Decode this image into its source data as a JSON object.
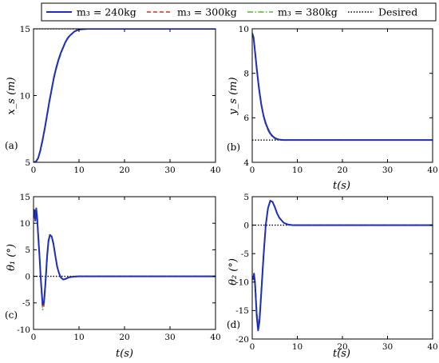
{
  "legend": {
    "placement": "top",
    "entries": [
      {
        "label": "m₃ = 240kg",
        "color": "#1f2fbf",
        "dash": "solid"
      },
      {
        "label": "m₃ = 300kg",
        "color": "#d2351e",
        "dash": "dashed"
      },
      {
        "label": "m₃ = 380kg",
        "color": "#56b82a",
        "dash": "dashdot"
      },
      {
        "label": "Desired",
        "color": "#000000",
        "dash": "dotted"
      }
    ]
  },
  "chart_data": [
    {
      "type": "line",
      "panel": "(a)",
      "ylabel": "x_s (m)",
      "xlabel": "",
      "xlim": [
        0,
        40
      ],
      "ylim": [
        5,
        15
      ],
      "xticks": [
        "0",
        "10",
        "20",
        "30",
        "40"
      ],
      "yticks": [
        "5",
        "10",
        "15"
      ],
      "grid": false,
      "series": [
        {
          "name": "m₃ = 240kg",
          "x": [
            0,
            0.5,
            1,
            1.5,
            2,
            2.5,
            3,
            3.5,
            4,
            4.5,
            5,
            5.5,
            6,
            6.5,
            7,
            7.5,
            8,
            9,
            10,
            12,
            15,
            20,
            30,
            40
          ],
          "y": [
            5,
            5.05,
            5.3,
            5.9,
            6.7,
            7.6,
            8.6,
            9.6,
            10.5,
            11.4,
            12.1,
            12.7,
            13.2,
            13.6,
            14.0,
            14.3,
            14.5,
            14.8,
            14.95,
            15,
            15,
            15,
            15,
            15
          ]
        },
        {
          "name": "m₃ = 300kg",
          "x": [
            0,
            0.5,
            1,
            1.5,
            2,
            2.5,
            3,
            3.5,
            4,
            4.5,
            5,
            5.5,
            6,
            6.5,
            7,
            7.5,
            8,
            9,
            10,
            12,
            15,
            20,
            30,
            40
          ],
          "y": [
            5,
            5.04,
            5.28,
            5.86,
            6.65,
            7.55,
            8.55,
            9.55,
            10.45,
            11.35,
            12.05,
            12.65,
            13.15,
            13.58,
            13.98,
            14.28,
            14.5,
            14.8,
            14.95,
            15,
            15,
            15,
            15,
            15
          ]
        },
        {
          "name": "m₃ = 380kg",
          "x": [
            0,
            0.5,
            1,
            1.5,
            2,
            2.5,
            3,
            3.5,
            4,
            4.5,
            5,
            5.5,
            6,
            6.5,
            7,
            7.5,
            8,
            9,
            10,
            12,
            15,
            20,
            30,
            40
          ],
          "y": [
            5,
            5.03,
            5.25,
            5.82,
            6.6,
            7.5,
            8.5,
            9.5,
            10.4,
            11.3,
            12.0,
            12.6,
            13.1,
            13.55,
            13.95,
            14.25,
            14.48,
            14.78,
            14.94,
            15,
            15,
            15,
            15,
            15
          ]
        },
        {
          "name": "Desired",
          "x": [
            0,
            40
          ],
          "y": [
            15,
            15
          ]
        }
      ]
    },
    {
      "type": "line",
      "panel": "(b)",
      "ylabel": "y_s (m)",
      "xlabel": "t(s)",
      "xlim": [
        0,
        40
      ],
      "ylim": [
        4,
        10
      ],
      "xticks": [
        "0",
        "10",
        "20",
        "30",
        "40"
      ],
      "yticks": [
        "4",
        "6",
        "8",
        "10"
      ],
      "grid": false,
      "series": [
        {
          "name": "m₃ = 240kg",
          "x": [
            0,
            0.3,
            0.6,
            1,
            1.5,
            2,
            2.5,
            3,
            3.5,
            4,
            4.5,
            5,
            5.5,
            6,
            7,
            8,
            10,
            15,
            20,
            30,
            40
          ],
          "y": [
            9.8,
            9.6,
            9.0,
            8.2,
            7.3,
            6.6,
            6.1,
            5.75,
            5.5,
            5.3,
            5.18,
            5.1,
            5.05,
            5.02,
            5.0,
            5.0,
            5.0,
            5.0,
            5.0,
            5.0,
            5.0
          ]
        },
        {
          "name": "m₃ = 300kg",
          "x": [
            0,
            0.3,
            0.6,
            1,
            1.5,
            2,
            2.5,
            3,
            3.5,
            4,
            4.5,
            5,
            5.5,
            6,
            7,
            8,
            10,
            15,
            20,
            30,
            40
          ],
          "y": [
            9.8,
            9.62,
            9.05,
            8.25,
            7.35,
            6.62,
            6.08,
            5.72,
            5.47,
            5.28,
            5.16,
            5.08,
            5.04,
            5.01,
            5.0,
            5.0,
            5.0,
            5.0,
            5.0,
            5.0,
            5.0
          ]
        },
        {
          "name": "m₃ = 380kg",
          "x": [
            0,
            0.3,
            0.6,
            1,
            1.5,
            2,
            2.5,
            3,
            3.5,
            4,
            4.5,
            5,
            5.5,
            6,
            7,
            8,
            10,
            15,
            20,
            30,
            40
          ],
          "y": [
            9.8,
            9.65,
            9.1,
            8.3,
            7.4,
            6.65,
            6.05,
            5.68,
            5.44,
            5.25,
            5.14,
            5.06,
            5.03,
            5.01,
            5.0,
            5.0,
            5.0,
            5.0,
            5.0,
            5.0,
            5.0
          ]
        },
        {
          "name": "Desired",
          "x": [
            0,
            40
          ],
          "y": [
            5,
            5
          ]
        }
      ]
    },
    {
      "type": "line",
      "panel": "(c)",
      "ylabel": "θ₁ (°)",
      "xlabel": "t(s)",
      "xlim": [
        0,
        40
      ],
      "ylim": [
        -10,
        15
      ],
      "xticks": [
        "0",
        "10",
        "20",
        "30",
        "40"
      ],
      "yticks": [
        "-10",
        "-5",
        "0",
        "5",
        "10",
        "15"
      ],
      "grid": false,
      "series": [
        {
          "name": "m₃ = 240kg",
          "x": [
            0,
            0.2,
            0.4,
            0.6,
            0.8,
            1,
            1.3,
            1.6,
            2,
            2.3,
            2.6,
            3,
            3.3,
            3.6,
            4,
            4.4,
            4.8,
            5.2,
            5.6,
            6,
            6.5,
            7,
            7.5,
            8,
            9,
            10,
            12,
            15,
            20,
            30,
            40
          ],
          "y": [
            11,
            12.5,
            10.5,
            12.8,
            11,
            8,
            4,
            -0.5,
            -5.3,
            -4.8,
            -1.5,
            4,
            6.8,
            7.8,
            7.5,
            6,
            3.8,
            1.8,
            0.6,
            -0.2,
            -0.6,
            -0.5,
            -0.3,
            -0.15,
            -0.05,
            0,
            0,
            0,
            0,
            0,
            0
          ]
        },
        {
          "name": "m₃ = 300kg",
          "x": [
            0,
            0.2,
            0.4,
            0.6,
            0.8,
            1,
            1.3,
            1.6,
            2,
            2.3,
            2.6,
            3,
            3.3,
            3.6,
            4,
            4.4,
            4.8,
            5.2,
            5.6,
            6,
            6.5,
            7,
            7.5,
            8,
            9,
            10,
            12,
            15,
            20,
            30,
            40
          ],
          "y": [
            11,
            12.2,
            10.8,
            12.5,
            11.2,
            8.2,
            4.2,
            -0.8,
            -5.8,
            -5.2,
            -1.8,
            3.8,
            6.6,
            7.7,
            7.5,
            6.1,
            3.9,
            1.9,
            0.6,
            -0.2,
            -0.6,
            -0.5,
            -0.3,
            -0.15,
            -0.05,
            0,
            0,
            0,
            0,
            0,
            0
          ]
        },
        {
          "name": "m₃ = 380kg",
          "x": [
            0,
            0.2,
            0.4,
            0.6,
            0.8,
            1,
            1.3,
            1.6,
            2,
            2.3,
            2.6,
            3,
            3.3,
            3.6,
            4,
            4.4,
            4.8,
            5.2,
            5.6,
            6,
            6.5,
            7,
            7.5,
            8,
            9,
            10,
            12,
            15,
            20,
            30,
            40
          ],
          "y": [
            11,
            12,
            11,
            12.2,
            11.4,
            8.5,
            4.5,
            -1,
            -6.3,
            -5.6,
            -2,
            3.5,
            6.4,
            7.6,
            7.5,
            6.2,
            4,
            2,
            0.7,
            -0.2,
            -0.6,
            -0.5,
            -0.3,
            -0.15,
            -0.05,
            0,
            0,
            0,
            0,
            0,
            0
          ]
        },
        {
          "name": "Desired",
          "x": [
            0,
            40
          ],
          "y": [
            0,
            0
          ]
        }
      ]
    },
    {
      "type": "line",
      "panel": "(d)",
      "ylabel": "θ₂ (°)",
      "xlabel": "t(s)",
      "xlim": [
        0,
        40
      ],
      "ylim": [
        -20,
        5
      ],
      "xticks": [
        "0",
        "10",
        "20",
        "30",
        "40"
      ],
      "yticks": [
        "-20",
        "-15",
        "-10",
        "-5",
        "0",
        "5"
      ],
      "grid": false,
      "series": [
        {
          "name": "m₃ = 240kg",
          "x": [
            0,
            0.2,
            0.4,
            0.6,
            0.8,
            1,
            1.3,
            1.6,
            2,
            2.5,
            3,
            3.5,
            4,
            4.5,
            5,
            5.5,
            6,
            7,
            8,
            9,
            10,
            12,
            15,
            20,
            30,
            40
          ],
          "y": [
            -9,
            -9.5,
            -8.5,
            -10,
            -13,
            -16,
            -18.5,
            -17,
            -12,
            -5.5,
            0,
            3,
            4.3,
            4.1,
            3.2,
            2.1,
            1.3,
            0.4,
            0.1,
            0,
            0,
            0,
            0,
            0,
            0,
            0
          ]
        },
        {
          "name": "m₃ = 300kg",
          "x": [
            0,
            0.2,
            0.4,
            0.6,
            0.8,
            1,
            1.3,
            1.6,
            2,
            2.5,
            3,
            3.5,
            4,
            4.5,
            5,
            5.5,
            6,
            7,
            8,
            9,
            10,
            12,
            15,
            20,
            30,
            40
          ],
          "y": [
            -9,
            -9.3,
            -8.6,
            -9.8,
            -12.6,
            -15.5,
            -18,
            -16.6,
            -11.7,
            -5.3,
            0.1,
            3,
            4.2,
            4.1,
            3.2,
            2.1,
            1.3,
            0.4,
            0.1,
            0,
            0,
            0,
            0,
            0,
            0,
            0
          ]
        },
        {
          "name": "m₃ = 380kg",
          "x": [
            0,
            0.2,
            0.4,
            0.6,
            0.8,
            1,
            1.3,
            1.6,
            2,
            2.5,
            3,
            3.5,
            4,
            4.5,
            5,
            5.5,
            6,
            7,
            8,
            9,
            10,
            12,
            15,
            20,
            30,
            40
          ],
          "y": [
            -9,
            -9.1,
            -8.7,
            -9.6,
            -12.2,
            -15,
            -17.5,
            -16.2,
            -11.4,
            -5.1,
            0.2,
            3,
            4.2,
            4.1,
            3.2,
            2.1,
            1.3,
            0.4,
            0.1,
            0,
            0,
            0,
            0,
            0,
            0,
            0
          ]
        },
        {
          "name": "Desired",
          "x": [
            0,
            40
          ],
          "y": [
            0,
            0
          ]
        }
      ]
    }
  ]
}
